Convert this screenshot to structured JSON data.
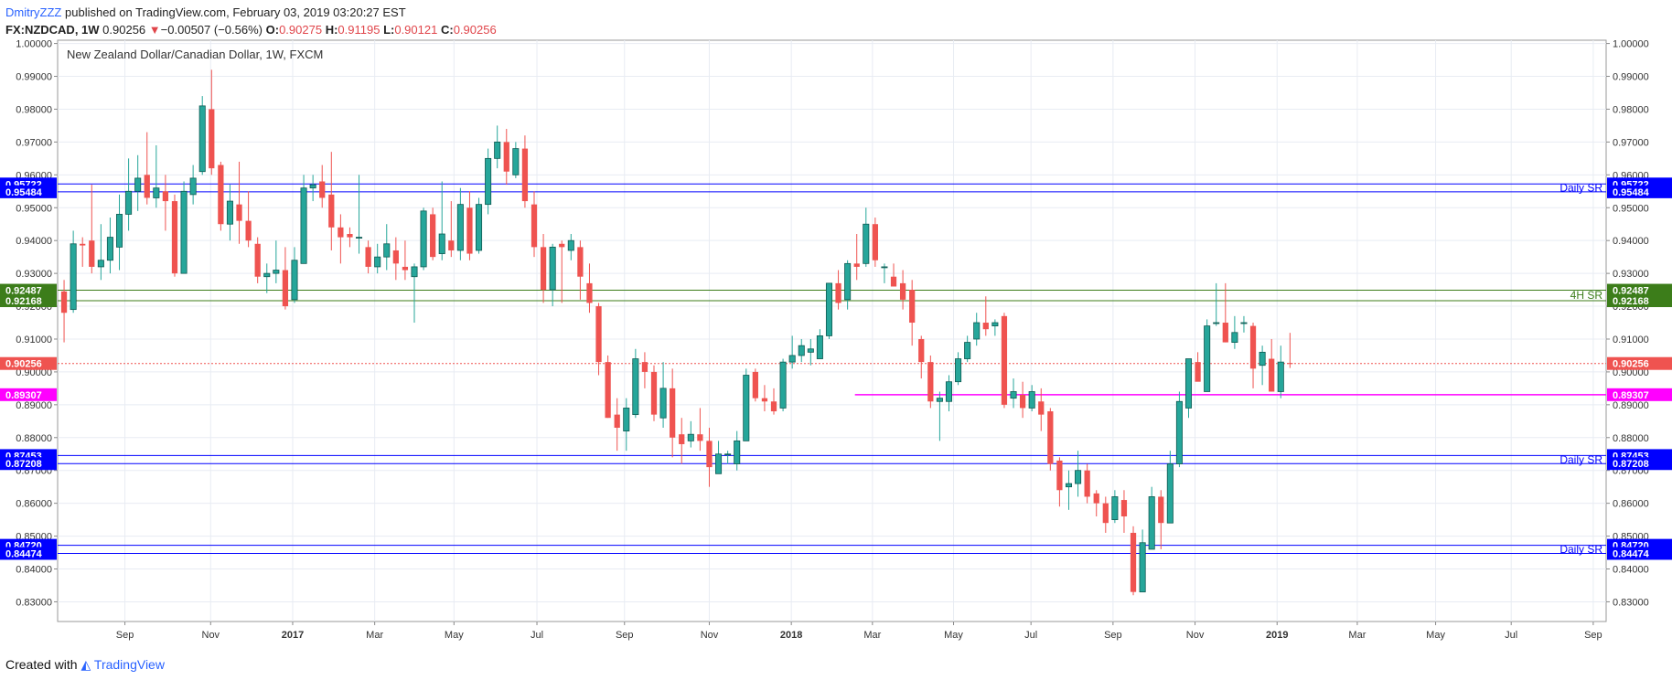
{
  "header": {
    "author": "DmitryZZZ",
    "published": "published on TradingView.com, February 03, 2019 03:20:27 EST",
    "symbol": "FX:NZDCAD, 1W",
    "last": "0.90256",
    "arrow": "▼",
    "change": "−0.00507 (−0.56%)",
    "open_label": "O:",
    "open": "0.90275",
    "high_label": "H:",
    "high": "0.91195",
    "low_label": "L:",
    "low": "0.90121",
    "close_label": "C:",
    "close": "0.90256"
  },
  "footer": {
    "created": "Created with",
    "brand": "TradingView"
  },
  "colors": {
    "up": "#26a69a",
    "down": "#ef5350",
    "blue": "#0000ff",
    "green": "#3c7d1a",
    "magenta": "#ff00ff",
    "last": "#ef5350",
    "grid": "#e8ecf3",
    "axis": "#888888"
  },
  "chart_data": {
    "type": "candlestick",
    "title": "New Zealand Dollar/Canadian Dollar, 1W, FXCM",
    "ylim": [
      0.824,
      1.001
    ],
    "y_ticks": [
      "1.00000",
      "0.99000",
      "0.98000",
      "0.97000",
      "0.96000",
      "0.95000",
      "0.94000",
      "0.93000",
      "0.92000",
      "0.91000",
      "0.90000",
      "0.89000",
      "0.88000",
      "0.87000",
      "0.86000",
      "0.85000",
      "0.84000",
      "0.83000"
    ],
    "x_ticks": [
      "Sep",
      "Nov",
      "2017",
      "Mar",
      "May",
      "Jul",
      "Sep",
      "Nov",
      "2018",
      "Mar",
      "May",
      "Jul",
      "Sep",
      "Nov",
      "2019",
      "Mar",
      "May",
      "Jul",
      "Sep"
    ],
    "x_ticks_bold": [
      "2017",
      "2018",
      "2019"
    ],
    "x_range_weeks": [
      0,
      168
    ],
    "x_tick_weeks": [
      7.3,
      16.6,
      25.5,
      34.4,
      43.0,
      52.0,
      61.5,
      70.7,
      79.6,
      88.4,
      97.2,
      105.6,
      114.5,
      123.4,
      132.3,
      141.0,
      149.5,
      157.7,
      166.6
    ],
    "candles": [
      {
        "o": 0.9245,
        "h": 0.928,
        "l": 0.909,
        "c": 0.918
      },
      {
        "o": 0.919,
        "h": 0.943,
        "l": 0.918,
        "c": 0.939
      },
      {
        "o": 0.939,
        "h": 0.941,
        "l": 0.932,
        "c": 0.9385
      },
      {
        "o": 0.94,
        "h": 0.957,
        "l": 0.93,
        "c": 0.932
      },
      {
        "o": 0.932,
        "h": 0.945,
        "l": 0.928,
        "c": 0.934
      },
      {
        "o": 0.934,
        "h": 0.947,
        "l": 0.93,
        "c": 0.941
      },
      {
        "o": 0.938,
        "h": 0.954,
        "l": 0.931,
        "c": 0.948
      },
      {
        "o": 0.948,
        "h": 0.965,
        "l": 0.943,
        "c": 0.955
      },
      {
        "o": 0.955,
        "h": 0.966,
        "l": 0.949,
        "c": 0.959
      },
      {
        "o": 0.96,
        "h": 0.973,
        "l": 0.951,
        "c": 0.953
      },
      {
        "o": 0.953,
        "h": 0.969,
        "l": 0.95,
        "c": 0.956
      },
      {
        "o": 0.955,
        "h": 0.96,
        "l": 0.943,
        "c": 0.952
      },
      {
        "o": 0.952,
        "h": 0.954,
        "l": 0.929,
        "c": 0.93
      },
      {
        "o": 0.93,
        "h": 0.958,
        "l": 0.93,
        "c": 0.955
      },
      {
        "o": 0.954,
        "h": 0.963,
        "l": 0.951,
        "c": 0.959
      },
      {
        "o": 0.961,
        "h": 0.984,
        "l": 0.96,
        "c": 0.981
      },
      {
        "o": 0.98,
        "h": 0.992,
        "l": 0.96,
        "c": 0.962
      },
      {
        "o": 0.963,
        "h": 0.964,
        "l": 0.943,
        "c": 0.945
      },
      {
        "o": 0.945,
        "h": 0.957,
        "l": 0.94,
        "c": 0.952
      },
      {
        "o": 0.951,
        "h": 0.964,
        "l": 0.939,
        "c": 0.946
      },
      {
        "o": 0.946,
        "h": 0.955,
        "l": 0.938,
        "c": 0.94
      },
      {
        "o": 0.939,
        "h": 0.941,
        "l": 0.927,
        "c": 0.929
      },
      {
        "o": 0.929,
        "h": 0.933,
        "l": 0.924,
        "c": 0.93
      },
      {
        "o": 0.93,
        "h": 0.94,
        "l": 0.927,
        "c": 0.931
      },
      {
        "o": 0.931,
        "h": 0.938,
        "l": 0.919,
        "c": 0.92
      },
      {
        "o": 0.922,
        "h": 0.938,
        "l": 0.921,
        "c": 0.934
      },
      {
        "o": 0.933,
        "h": 0.96,
        "l": 0.933,
        "c": 0.956
      },
      {
        "o": 0.956,
        "h": 0.96,
        "l": 0.952,
        "c": 0.957
      },
      {
        "o": 0.958,
        "h": 0.963,
        "l": 0.95,
        "c": 0.953
      },
      {
        "o": 0.954,
        "h": 0.967,
        "l": 0.937,
        "c": 0.944
      },
      {
        "o": 0.944,
        "h": 0.948,
        "l": 0.933,
        "c": 0.941
      },
      {
        "o": 0.942,
        "h": 0.944,
        "l": 0.938,
        "c": 0.941
      },
      {
        "o": 0.941,
        "h": 0.96,
        "l": 0.936,
        "c": 0.941
      },
      {
        "o": 0.938,
        "h": 0.94,
        "l": 0.93,
        "c": 0.932
      },
      {
        "o": 0.932,
        "h": 0.939,
        "l": 0.93,
        "c": 0.935
      },
      {
        "o": 0.935,
        "h": 0.945,
        "l": 0.931,
        "c": 0.939
      },
      {
        "o": 0.937,
        "h": 0.941,
        "l": 0.928,
        "c": 0.933
      },
      {
        "o": 0.932,
        "h": 0.94,
        "l": 0.928,
        "c": 0.931
      },
      {
        "o": 0.929,
        "h": 0.933,
        "l": 0.915,
        "c": 0.932
      },
      {
        "o": 0.932,
        "h": 0.95,
        "l": 0.931,
        "c": 0.949
      },
      {
        "o": 0.948,
        "h": 0.95,
        "l": 0.934,
        "c": 0.935
      },
      {
        "o": 0.936,
        "h": 0.958,
        "l": 0.934,
        "c": 0.942
      },
      {
        "o": 0.94,
        "h": 0.952,
        "l": 0.935,
        "c": 0.937
      },
      {
        "o": 0.937,
        "h": 0.956,
        "l": 0.934,
        "c": 0.951
      },
      {
        "o": 0.95,
        "h": 0.955,
        "l": 0.934,
        "c": 0.936
      },
      {
        "o": 0.937,
        "h": 0.953,
        "l": 0.936,
        "c": 0.951
      },
      {
        "o": 0.951,
        "h": 0.968,
        "l": 0.948,
        "c": 0.965
      },
      {
        "o": 0.965,
        "h": 0.975,
        "l": 0.962,
        "c": 0.97
      },
      {
        "o": 0.97,
        "h": 0.974,
        "l": 0.957,
        "c": 0.961
      },
      {
        "o": 0.96,
        "h": 0.97,
        "l": 0.959,
        "c": 0.968
      },
      {
        "o": 0.968,
        "h": 0.972,
        "l": 0.95,
        "c": 0.952
      },
      {
        "o": 0.951,
        "h": 0.955,
        "l": 0.935,
        "c": 0.938
      },
      {
        "o": 0.938,
        "h": 0.942,
        "l": 0.921,
        "c": 0.925
      },
      {
        "o": 0.925,
        "h": 0.939,
        "l": 0.92,
        "c": 0.938
      },
      {
        "o": 0.939,
        "h": 0.94,
        "l": 0.921,
        "c": 0.938
      },
      {
        "o": 0.937,
        "h": 0.942,
        "l": 0.934,
        "c": 0.94
      },
      {
        "o": 0.938,
        "h": 0.94,
        "l": 0.922,
        "c": 0.929
      },
      {
        "o": 0.927,
        "h": 0.933,
        "l": 0.918,
        "c": 0.921
      },
      {
        "o": 0.92,
        "h": 0.921,
        "l": 0.899,
        "c": 0.903
      },
      {
        "o": 0.903,
        "h": 0.905,
        "l": 0.886,
        "c": 0.886
      },
      {
        "o": 0.887,
        "h": 0.892,
        "l": 0.876,
        "c": 0.883
      },
      {
        "o": 0.882,
        "h": 0.892,
        "l": 0.876,
        "c": 0.889
      },
      {
        "o": 0.887,
        "h": 0.907,
        "l": 0.886,
        "c": 0.904
      },
      {
        "o": 0.903,
        "h": 0.906,
        "l": 0.895,
        "c": 0.9
      },
      {
        "o": 0.9,
        "h": 0.902,
        "l": 0.885,
        "c": 0.887
      },
      {
        "o": 0.886,
        "h": 0.903,
        "l": 0.883,
        "c": 0.895
      },
      {
        "o": 0.895,
        "h": 0.901,
        "l": 0.874,
        "c": 0.88
      },
      {
        "o": 0.881,
        "h": 0.886,
        "l": 0.872,
        "c": 0.878
      },
      {
        "o": 0.879,
        "h": 0.885,
        "l": 0.877,
        "c": 0.881
      },
      {
        "o": 0.881,
        "h": 0.889,
        "l": 0.876,
        "c": 0.879
      },
      {
        "o": 0.879,
        "h": 0.883,
        "l": 0.865,
        "c": 0.871
      },
      {
        "o": 0.869,
        "h": 0.879,
        "l": 0.869,
        "c": 0.875
      },
      {
        "o": 0.875,
        "h": 0.876,
        "l": 0.872,
        "c": 0.875
      },
      {
        "o": 0.872,
        "h": 0.882,
        "l": 0.87,
        "c": 0.879
      },
      {
        "o": 0.879,
        "h": 0.901,
        "l": 0.879,
        "c": 0.899
      },
      {
        "o": 0.9,
        "h": 0.901,
        "l": 0.891,
        "c": 0.892
      },
      {
        "o": 0.892,
        "h": 0.896,
        "l": 0.888,
        "c": 0.891
      },
      {
        "o": 0.891,
        "h": 0.895,
        "l": 0.887,
        "c": 0.888
      },
      {
        "o": 0.889,
        "h": 0.904,
        "l": 0.888,
        "c": 0.903
      },
      {
        "o": 0.903,
        "h": 0.911,
        "l": 0.901,
        "c": 0.905
      },
      {
        "o": 0.905,
        "h": 0.91,
        "l": 0.903,
        "c": 0.908
      },
      {
        "o": 0.906,
        "h": 0.91,
        "l": 0.902,
        "c": 0.907
      },
      {
        "o": 0.904,
        "h": 0.913,
        "l": 0.904,
        "c": 0.911
      },
      {
        "o": 0.911,
        "h": 0.927,
        "l": 0.91,
        "c": 0.927
      },
      {
        "o": 0.927,
        "h": 0.931,
        "l": 0.919,
        "c": 0.921
      },
      {
        "o": 0.922,
        "h": 0.934,
        "l": 0.919,
        "c": 0.933
      },
      {
        "o": 0.933,
        "h": 0.942,
        "l": 0.928,
        "c": 0.932
      },
      {
        "o": 0.933,
        "h": 0.95,
        "l": 0.932,
        "c": 0.945
      },
      {
        "o": 0.945,
        "h": 0.947,
        "l": 0.932,
        "c": 0.934
      },
      {
        "o": 0.932,
        "h": 0.933,
        "l": 0.927,
        "c": 0.932
      },
      {
        "o": 0.929,
        "h": 0.933,
        "l": 0.926,
        "c": 0.926
      },
      {
        "o": 0.927,
        "h": 0.931,
        "l": 0.919,
        "c": 0.922
      },
      {
        "o": 0.925,
        "h": 0.928,
        "l": 0.908,
        "c": 0.915
      },
      {
        "o": 0.91,
        "h": 0.911,
        "l": 0.898,
        "c": 0.903
      },
      {
        "o": 0.903,
        "h": 0.905,
        "l": 0.889,
        "c": 0.891
      },
      {
        "o": 0.891,
        "h": 0.894,
        "l": 0.879,
        "c": 0.892
      },
      {
        "o": 0.891,
        "h": 0.899,
        "l": 0.888,
        "c": 0.897
      },
      {
        "o": 0.897,
        "h": 0.906,
        "l": 0.896,
        "c": 0.904
      },
      {
        "o": 0.904,
        "h": 0.911,
        "l": 0.903,
        "c": 0.909
      },
      {
        "o": 0.91,
        "h": 0.918,
        "l": 0.908,
        "c": 0.915
      },
      {
        "o": 0.915,
        "h": 0.923,
        "l": 0.911,
        "c": 0.913
      },
      {
        "o": 0.914,
        "h": 0.916,
        "l": 0.911,
        "c": 0.915
      },
      {
        "o": 0.917,
        "h": 0.918,
        "l": 0.889,
        "c": 0.89
      },
      {
        "o": 0.892,
        "h": 0.898,
        "l": 0.889,
        "c": 0.894
      },
      {
        "o": 0.893,
        "h": 0.897,
        "l": 0.886,
        "c": 0.889
      },
      {
        "o": 0.889,
        "h": 0.896,
        "l": 0.888,
        "c": 0.894
      },
      {
        "o": 0.891,
        "h": 0.895,
        "l": 0.882,
        "c": 0.887
      },
      {
        "o": 0.888,
        "h": 0.889,
        "l": 0.87,
        "c": 0.872
      },
      {
        "o": 0.873,
        "h": 0.874,
        "l": 0.859,
        "c": 0.864
      },
      {
        "o": 0.865,
        "h": 0.87,
        "l": 0.858,
        "c": 0.866
      },
      {
        "o": 0.866,
        "h": 0.876,
        "l": 0.862,
        "c": 0.87
      },
      {
        "o": 0.87,
        "h": 0.872,
        "l": 0.86,
        "c": 0.862
      },
      {
        "o": 0.863,
        "h": 0.864,
        "l": 0.856,
        "c": 0.86
      },
      {
        "o": 0.86,
        "h": 0.862,
        "l": 0.851,
        "c": 0.854
      },
      {
        "o": 0.855,
        "h": 0.864,
        "l": 0.854,
        "c": 0.862
      },
      {
        "o": 0.861,
        "h": 0.864,
        "l": 0.851,
        "c": 0.856
      },
      {
        "o": 0.851,
        "h": 0.853,
        "l": 0.832,
        "c": 0.833
      },
      {
        "o": 0.833,
        "h": 0.852,
        "l": 0.833,
        "c": 0.848
      },
      {
        "o": 0.846,
        "h": 0.865,
        "l": 0.846,
        "c": 0.862
      },
      {
        "o": 0.862,
        "h": 0.864,
        "l": 0.846,
        "c": 0.854
      },
      {
        "o": 0.854,
        "h": 0.876,
        "l": 0.854,
        "c": 0.872
      },
      {
        "o": 0.872,
        "h": 0.894,
        "l": 0.871,
        "c": 0.891
      },
      {
        "o": 0.889,
        "h": 0.904,
        "l": 0.886,
        "c": 0.904
      },
      {
        "o": 0.903,
        "h": 0.906,
        "l": 0.898,
        "c": 0.897
      },
      {
        "o": 0.894,
        "h": 0.916,
        "l": 0.894,
        "c": 0.914
      },
      {
        "o": 0.915,
        "h": 0.927,
        "l": 0.914,
        "c": 0.915
      },
      {
        "o": 0.915,
        "h": 0.927,
        "l": 0.909,
        "c": 0.909
      },
      {
        "o": 0.909,
        "h": 0.917,
        "l": 0.907,
        "c": 0.912
      },
      {
        "o": 0.915,
        "h": 0.917,
        "l": 0.912,
        "c": 0.915
      },
      {
        "o": 0.914,
        "h": 0.915,
        "l": 0.895,
        "c": 0.901
      },
      {
        "o": 0.902,
        "h": 0.908,
        "l": 0.896,
        "c": 0.906
      },
      {
        "o": 0.904,
        "h": 0.91,
        "l": 0.894,
        "c": 0.894
      },
      {
        "o": 0.894,
        "h": 0.908,
        "l": 0.892,
        "c": 0.903
      },
      {
        "o": 0.9027,
        "h": 0.9119,
        "l": 0.9012,
        "c": 0.9026
      }
    ],
    "first_candle_week": 0.7,
    "levels": [
      {
        "name": "daily-sr-upper-a",
        "value": 0.95722,
        "label": "0.95722",
        "color": "blue",
        "x_start": "full"
      },
      {
        "name": "daily-sr-upper-b",
        "value": 0.95484,
        "label": "0.95484",
        "color": "blue",
        "x_start": "full"
      },
      {
        "name": "h4-sr-a",
        "value": 0.92487,
        "label": "0.92487",
        "color": "green",
        "x_start": "full"
      },
      {
        "name": "h4-sr-b",
        "value": 0.92168,
        "label": "0.92168",
        "color": "green",
        "x_start": "full"
      },
      {
        "name": "last-price",
        "value": 0.90256,
        "label": "0.90256",
        "color": "last",
        "x_start": "full",
        "dotted": true
      },
      {
        "name": "magenta-level",
        "value": 0.89307,
        "label": "0.89307",
        "color": "magenta",
        "x_start_week": 86.5
      },
      {
        "name": "daily-sr-mid-a",
        "value": 0.87453,
        "label": "0.87453",
        "color": "blue",
        "x_start": "full"
      },
      {
        "name": "daily-sr-mid-b",
        "value": 0.87208,
        "label": "0.87208",
        "color": "blue",
        "x_start": "full"
      },
      {
        "name": "daily-sr-low-a",
        "value": 0.8472,
        "label": "0.84720",
        "color": "blue",
        "x_start": "full"
      },
      {
        "name": "daily-sr-low-b",
        "value": 0.84474,
        "label": "0.84474",
        "color": "blue",
        "x_start": "full"
      }
    ],
    "zone_labels": [
      {
        "text": "Daily SR",
        "value": 0.956,
        "color": "blue"
      },
      {
        "text": "4H SR",
        "value": 0.9233,
        "color": "green"
      },
      {
        "text": "Daily SR",
        "value": 0.8733,
        "color": "blue"
      },
      {
        "text": "Daily SR",
        "value": 0.846,
        "color": "blue"
      }
    ]
  }
}
